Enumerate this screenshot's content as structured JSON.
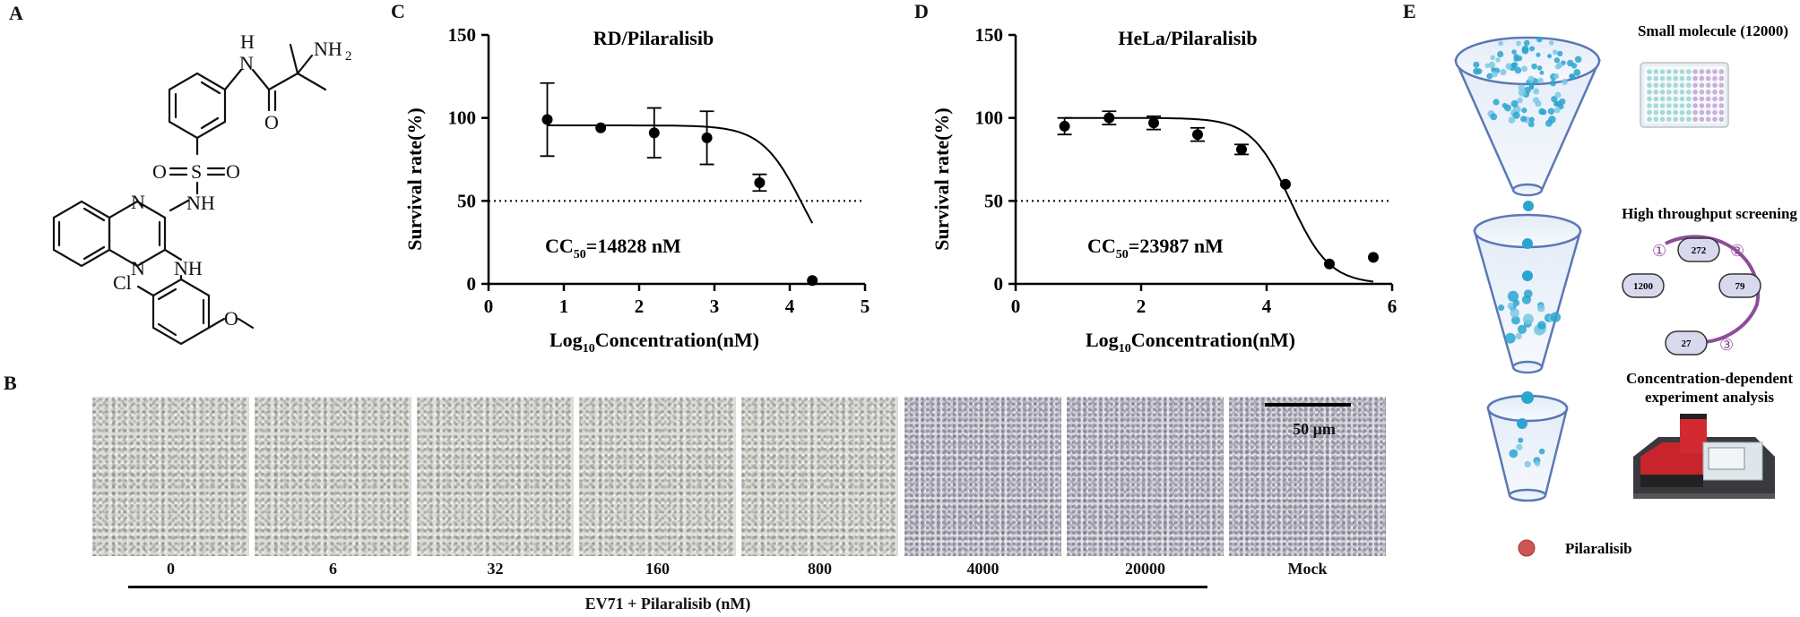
{
  "panels": {
    "a": "A",
    "b": "B",
    "c": "C",
    "d": "D",
    "e": "E"
  },
  "structure": {
    "nh_top": "H",
    "n_top": "N",
    "nh2": "NH",
    "nh2_sub": "2",
    "o_amide": "O",
    "o_left": "O",
    "s": "S",
    "o_right": "O",
    "nh_sulf": "NH",
    "n_ring1": "N",
    "n_ring2": "N",
    "nh_bottom": "NH",
    "cl": "Cl",
    "o_methoxy": "O"
  },
  "chart_data": [
    {
      "type": "scatter",
      "title": "RD/Pilaralisib",
      "xlabel": "Log10Concentration(nM)",
      "xlabel_main": "Log",
      "xlabel_sub": "10",
      "xlabel_rest": "Concentration(nM)",
      "ylabel": "Survival rate(%)",
      "xlim": [
        0,
        5
      ],
      "ylim": [
        0,
        150
      ],
      "xticks": [
        "0",
        "1",
        "2",
        "3",
        "4",
        "5"
      ],
      "yticks": [
        "0",
        "50",
        "100",
        "150"
      ],
      "threshold": 50,
      "annotation": "CC50=14828 nM",
      "annotation_main": "CC",
      "annotation_sub": "50",
      "annotation_rest": "=14828 nM",
      "points": [
        {
          "x": 0.78,
          "y": 99,
          "err": 22
        },
        {
          "x": 1.49,
          "y": 94,
          "err": 0
        },
        {
          "x": 2.2,
          "y": 91,
          "err": 15
        },
        {
          "x": 2.9,
          "y": 88,
          "err": 16
        },
        {
          "x": 3.6,
          "y": 61,
          "err": 5
        },
        {
          "x": 4.3,
          "y": 2,
          "err": 0
        }
      ],
      "fit": {
        "top": 95.5,
        "bottom": 0,
        "logCC50": 4.171,
        "hill": 1.6
      }
    },
    {
      "type": "scatter",
      "title": "HeLa/Pilaralisib",
      "xlabel": "Log10Concentration(nM)",
      "xlabel_main": "Log",
      "xlabel_sub": "10",
      "xlabel_rest": "Concentration(nM)",
      "ylabel": "Survival rate(%)",
      "xlim": [
        0,
        6
      ],
      "ylim": [
        0,
        150
      ],
      "xticks": [
        "0",
        "2",
        "4",
        "6"
      ],
      "yticks": [
        "0",
        "50",
        "100",
        "150"
      ],
      "threshold": 50,
      "annotation": "CC50=23987 nM",
      "annotation_main": "CC",
      "annotation_sub": "50",
      "annotation_rest": "=23987 nM",
      "points": [
        {
          "x": 0.78,
          "y": 95,
          "err": 5
        },
        {
          "x": 1.49,
          "y": 100,
          "err": 4
        },
        {
          "x": 2.2,
          "y": 97,
          "err": 4
        },
        {
          "x": 2.9,
          "y": 90,
          "err": 4
        },
        {
          "x": 3.6,
          "y": 81,
          "err": 3
        },
        {
          "x": 4.3,
          "y": 60,
          "err": 0
        },
        {
          "x": 5.0,
          "y": 12,
          "err": 0
        },
        {
          "x": 5.7,
          "y": 16,
          "err": 0
        }
      ],
      "fit": {
        "top": 100,
        "bottom": 0,
        "logCC50": 4.38,
        "hill": 1.4
      }
    }
  ],
  "microscopy": {
    "concentrations": [
      "0",
      "6",
      "32",
      "160",
      "800",
      "4000",
      "20000",
      "Mock"
    ],
    "scale_bar": "50 μm",
    "group_label": "EV71 + Pilaralisib (nM)"
  },
  "workflow": {
    "step1": "Small molecule (12000)",
    "step2": "High throughput screening",
    "step3_line1": "Concentration-dependent",
    "step3_line2": "experiment analysis",
    "counts": [
      "1200",
      "272",
      "79",
      "27"
    ],
    "circles": [
      "①",
      "②",
      "③"
    ],
    "legend": "Pilaralisib",
    "colors": {
      "funnel": "#5b78b4",
      "dot": "#2aa5cf",
      "arrow": "#8e4d9a",
      "legend_dot": "#cc5555"
    }
  }
}
